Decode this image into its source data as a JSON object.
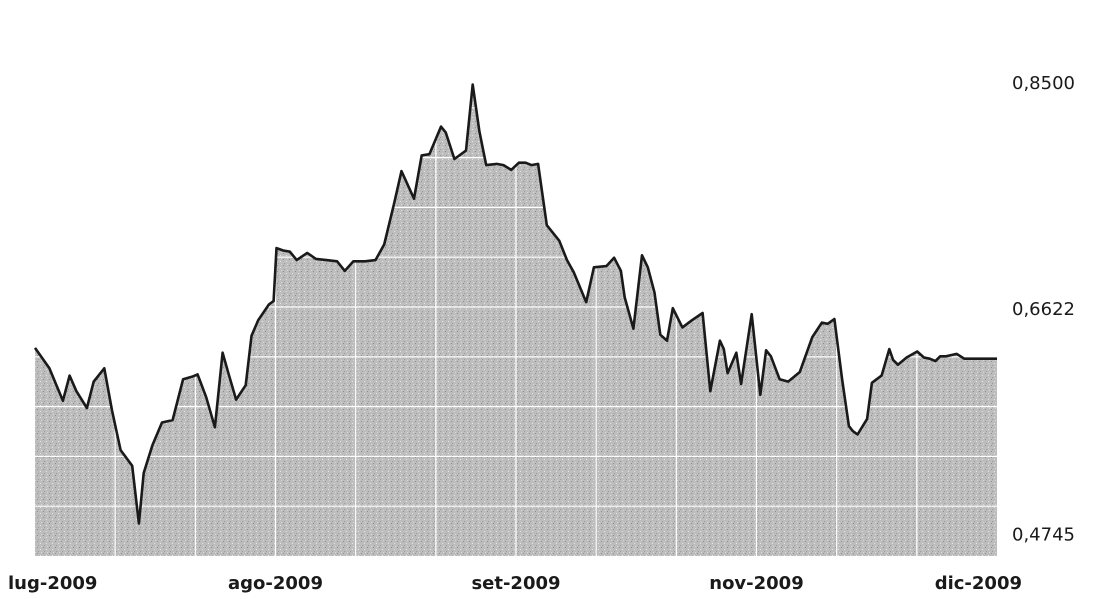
{
  "chart_data": {
    "type": "area",
    "title": "",
    "subtitle_faint": "",
    "xlabel": "",
    "ylabel": "",
    "x_tick_labels": [
      "lug-2009",
      "ago-2009",
      "set-2009",
      "nov-2009",
      "dic-2009"
    ],
    "y_tick_labels": [
      "0,8500",
      "0,6622",
      "0,4745"
    ],
    "y_ticks": [
      0.85,
      0.6622,
      0.4745
    ],
    "ylim": [
      0.456,
      0.87
    ],
    "x_range": [
      0,
      100
    ],
    "x_tick_positions": [
      0,
      25,
      50,
      75,
      100
    ],
    "grid": true,
    "legend": "none",
    "colors": {
      "line": "#1a1a1a",
      "fill": "#bdbdbd",
      "grid": "#ffffff"
    },
    "series": [
      {
        "x": [
          0,
          1.5,
          2.9,
          3.6,
          4.3,
          5.4,
          6.1,
          7.2,
          8.0,
          8.9,
          10.1,
          10.8,
          11.3,
          12.2,
          13.2,
          14.3,
          15.4,
          16.3,
          16.9,
          17.8,
          18.7,
          19.5,
          20.1,
          20.9,
          21.9,
          22.5,
          23.2,
          24.3,
          24.8,
          25.1,
          25.8,
          26.5,
          27.2,
          28.3,
          29.2,
          30.3,
          31.4,
          32.2,
          33.1,
          34.3,
          35.4,
          36.3,
          37.3,
          38.1,
          39.4,
          40.2,
          41.0,
          42.2,
          42.7,
          43.6,
          44.8,
          45.5,
          46.2,
          46.9,
          48.0,
          48.7,
          49.5,
          50.3,
          51.0,
          51.6,
          52.3,
          53.2,
          54.5,
          55.3,
          56.0,
          57.3,
          58.1,
          59.4,
          60.2,
          60.9,
          61.3,
          62.2,
          63.1,
          63.7,
          64.4,
          65.0,
          65.7,
          66.3,
          67.3,
          68.3,
          69.4,
          70.2,
          71.2,
          71.6,
          72.0,
          72.9,
          73.4,
          74.5,
          75.4,
          76.0,
          76.5,
          77.4,
          78.3,
          79.5,
          80.8,
          81.8,
          82.4,
          83.1,
          83.9,
          84.6,
          85.0,
          85.5,
          86.5,
          87.0,
          88.0,
          88.8,
          89.2,
          89.7,
          90.6,
          91.7,
          92.4,
          93.0,
          93.6,
          94.1,
          94.7,
          95.8,
          96.6,
          97.6,
          100.0
        ],
        "values": [
          0.629,
          0.612,
          0.585,
          0.606,
          0.593,
          0.579,
          0.601,
          0.612,
          0.577,
          0.544,
          0.531,
          0.483,
          0.525,
          0.548,
          0.567,
          0.569,
          0.603,
          0.605,
          0.607,
          0.588,
          0.563,
          0.625,
          0.608,
          0.586,
          0.598,
          0.639,
          0.652,
          0.665,
          0.668,
          0.712,
          0.71,
          0.709,
          0.702,
          0.708,
          0.703,
          0.702,
          0.701,
          0.693,
          0.701,
          0.701,
          0.702,
          0.715,
          0.748,
          0.776,
          0.753,
          0.789,
          0.79,
          0.813,
          0.808,
          0.786,
          0.793,
          0.848,
          0.809,
          0.781,
          0.782,
          0.781,
          0.777,
          0.783,
          0.783,
          0.781,
          0.782,
          0.731,
          0.718,
          0.702,
          0.692,
          0.667,
          0.696,
          0.697,
          0.704,
          0.693,
          0.671,
          0.645,
          0.706,
          0.696,
          0.675,
          0.64,
          0.635,
          0.662,
          0.646,
          0.652,
          0.658,
          0.593,
          0.635,
          0.628,
          0.608,
          0.625,
          0.599,
          0.657,
          0.59,
          0.627,
          0.622,
          0.603,
          0.601,
          0.609,
          0.638,
          0.65,
          0.649,
          0.653,
          0.603,
          0.564,
          0.56,
          0.557,
          0.57,
          0.6,
          0.606,
          0.628,
          0.619,
          0.615,
          0.621,
          0.626,
          0.621,
          0.62,
          0.618,
          0.622,
          0.622,
          0.624,
          0.62,
          0.62,
          0.62
        ]
      }
    ]
  }
}
